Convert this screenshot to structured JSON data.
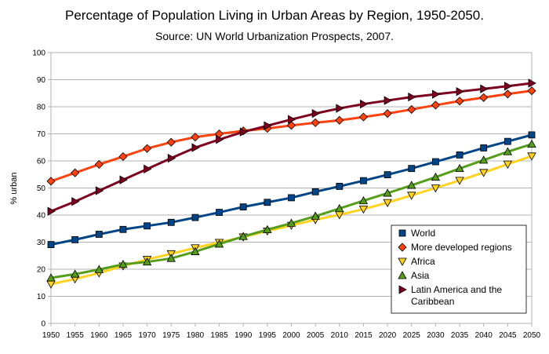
{
  "chart_data": {
    "type": "line",
    "title": "Percentage of Population Living in Urban Areas by Region, 1950-2050.",
    "subtitle": "Source: UN World Urbanization Prospects, 2007.",
    "xlabel": "",
    "ylabel": "% urban",
    "ylim": [
      0,
      100
    ],
    "yticks": [
      0,
      10,
      20,
      30,
      40,
      50,
      60,
      70,
      80,
      90,
      100
    ],
    "x": [
      1950,
      1955,
      1960,
      1965,
      1970,
      1975,
      1980,
      1985,
      1990,
      1995,
      2000,
      2005,
      2010,
      2015,
      2020,
      2025,
      2030,
      2035,
      2040,
      2045,
      2050
    ],
    "grid": true,
    "legend_position": "bottom-right",
    "series": [
      {
        "name": "World",
        "color": "#004586",
        "marker": "square",
        "values": [
          29.1,
          30.9,
          32.9,
          34.7,
          36.0,
          37.3,
          39.1,
          41.0,
          43.0,
          44.7,
          46.4,
          48.6,
          50.6,
          52.7,
          54.9,
          57.2,
          59.7,
          62.2,
          64.8,
          67.2,
          69.6
        ]
      },
      {
        "name": "More developed regions",
        "color": "#ff420e",
        "marker": "diamond",
        "values": [
          52.5,
          55.6,
          58.7,
          61.6,
          64.6,
          66.9,
          68.8,
          70.0,
          71.1,
          72.0,
          73.1,
          74.1,
          75.0,
          76.2,
          77.5,
          79.0,
          80.6,
          82.1,
          83.4,
          84.7,
          85.9
        ]
      },
      {
        "name": "Africa",
        "color": "#ffd320",
        "marker": "triangle-down",
        "values": [
          14.5,
          16.4,
          18.6,
          21.2,
          23.6,
          25.7,
          27.9,
          29.9,
          31.9,
          34.1,
          36.2,
          38.3,
          40.1,
          42.2,
          44.6,
          47.3,
          50.0,
          52.8,
          55.7,
          58.8,
          61.8
        ]
      },
      {
        "name": "Asia",
        "color": "#579d1c",
        "marker": "triangle-up",
        "values": [
          16.8,
          18.2,
          19.9,
          21.8,
          22.7,
          24.0,
          26.5,
          29.3,
          32.1,
          34.6,
          37.0,
          39.6,
          42.4,
          45.3,
          48.1,
          51.0,
          54.0,
          57.2,
          60.3,
          63.4,
          66.2
        ]
      },
      {
        "name": "Latin America and the Caribbean",
        "color": "#7e0021",
        "marker": "triangle-right",
        "values": [
          41.4,
          45.0,
          49.0,
          53.0,
          57.0,
          61.0,
          64.9,
          67.9,
          70.7,
          73.0,
          75.3,
          77.5,
          79.4,
          81.0,
          82.3,
          83.6,
          84.6,
          85.6,
          86.6,
          87.6,
          88.7
        ]
      }
    ]
  }
}
